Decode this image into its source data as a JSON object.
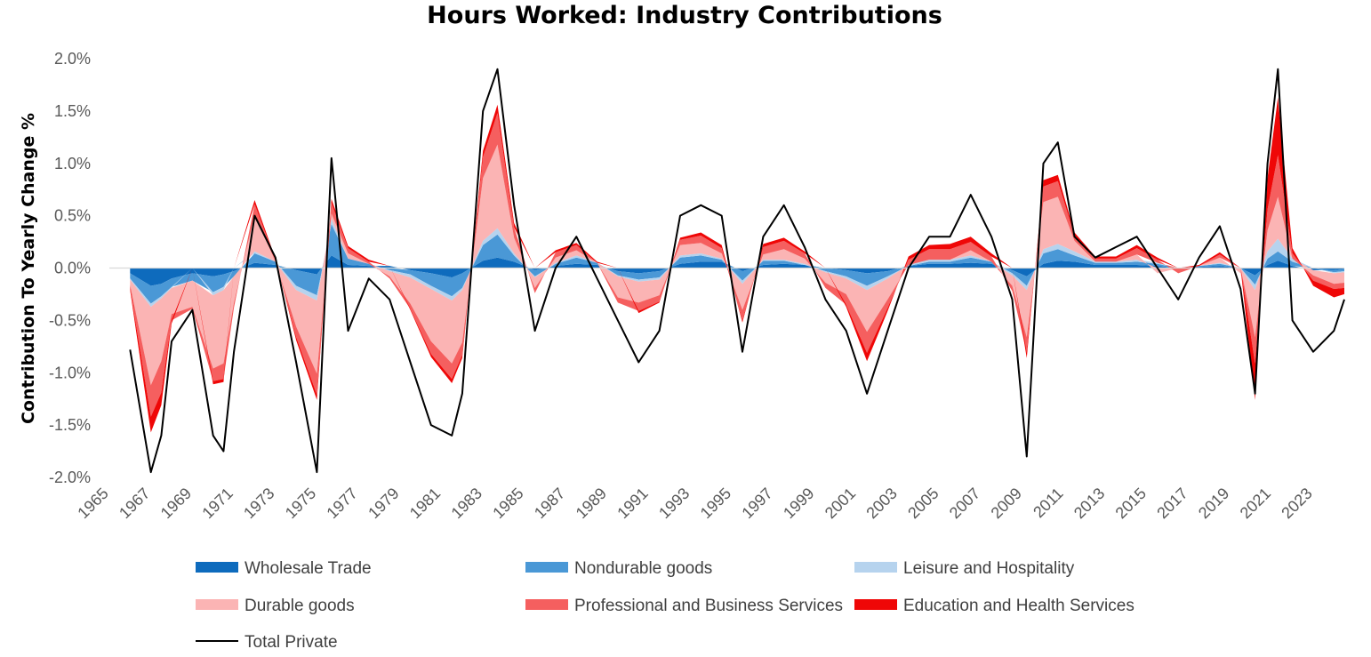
{
  "chart_data": {
    "type": "area",
    "title": "Hours Worked: Industry Contributions",
    "xlabel": "",
    "ylabel": "Contribution To Yearly Change %",
    "xlim": [
      1965,
      2024.5
    ],
    "ylim": [
      -2.0,
      2.0
    ],
    "y_ticks": [
      2.0,
      1.5,
      1.0,
      0.5,
      0.0,
      -0.5,
      -1.0,
      -1.5,
      -2.0
    ],
    "y_tick_labels": [
      "2.0%",
      "1.5%",
      "1.0%",
      "0.5%",
      "0.0%",
      "-0.5%",
      "-1.0%",
      "-1.5%",
      "-2.0%"
    ],
    "x_ticks": [
      1965,
      1967,
      1969,
      1971,
      1973,
      1975,
      1977,
      1979,
      1981,
      1983,
      1985,
      1987,
      1989,
      1991,
      1993,
      1995,
      1997,
      1999,
      2001,
      2003,
      2005,
      2007,
      2009,
      2011,
      2013,
      2015,
      2017,
      2019,
      2021,
      2023
    ],
    "x_tick_labels": [
      "1965",
      "1967",
      "1969",
      "1971",
      "1973",
      "1975",
      "1977",
      "1979",
      "1981",
      "1983",
      "1985",
      "1987",
      "1989",
      "1991",
      "1993",
      "1995",
      "1997",
      "1999",
      "2001",
      "2003",
      "2005",
      "2007",
      "2009",
      "2011",
      "2013",
      "2015",
      "2017",
      "2019",
      "2021",
      "2023"
    ],
    "grid": false,
    "legend_position": "bottom",
    "x": [
      1966.0,
      1967.0,
      1967.5,
      1968.0,
      1969.0,
      1970.0,
      1970.5,
      1971.0,
      1972.0,
      1973.0,
      1974.0,
      1975.0,
      1975.7,
      1976.5,
      1977.5,
      1978.5,
      1979.5,
      1980.5,
      1981.5,
      1982.0,
      1983.0,
      1983.7,
      1984.5,
      1985.5,
      1986.5,
      1987.5,
      1988.5,
      1989.5,
      1990.5,
      1991.5,
      1992.5,
      1993.5,
      1994.5,
      1995.5,
      1996.5,
      1997.5,
      1998.5,
      1999.5,
      2000.5,
      2001.5,
      2002.5,
      2003.5,
      2004.5,
      2005.5,
      2006.5,
      2007.5,
      2008.5,
      2009.2,
      2010.0,
      2010.7,
      2011.5,
      2012.5,
      2013.5,
      2014.5,
      2015.5,
      2016.5,
      2017.5,
      2018.5,
      2019.5,
      2020.2,
      2020.8,
      2021.3,
      2022.0,
      2023.0,
      2024.0,
      2024.5
    ],
    "series": [
      {
        "name": "Wholesale Trade",
        "color": "#0e6bbd",
        "values": [
          -0.05,
          -0.17,
          -0.15,
          -0.1,
          -0.05,
          -0.08,
          -0.06,
          -0.03,
          0.05,
          0.03,
          -0.02,
          -0.06,
          0.12,
          0.03,
          0.02,
          0.02,
          -0.02,
          -0.05,
          -0.09,
          -0.05,
          0.07,
          0.1,
          0.06,
          -0.02,
          0.02,
          0.04,
          0.03,
          -0.03,
          -0.05,
          -0.03,
          0.04,
          0.06,
          0.06,
          -0.03,
          0.03,
          0.04,
          0.03,
          0.0,
          -0.02,
          -0.05,
          -0.03,
          0.02,
          0.04,
          0.04,
          0.05,
          0.04,
          -0.02,
          -0.08,
          0.04,
          0.07,
          0.06,
          0.03,
          0.03,
          0.03,
          0.02,
          0.0,
          0.01,
          0.02,
          0.0,
          -0.07,
          0.03,
          0.07,
          0.02,
          -0.02,
          -0.02,
          -0.01
        ]
      },
      {
        "name": "Nondurable goods",
        "color": "#4a98d6",
        "values": [
          -0.05,
          -0.17,
          -0.12,
          -0.08,
          -0.07,
          -0.15,
          -0.12,
          -0.05,
          0.09,
          0.03,
          -0.15,
          -0.2,
          0.3,
          0.06,
          0.02,
          -0.02,
          -0.04,
          -0.12,
          -0.18,
          -0.14,
          0.15,
          0.22,
          0.06,
          -0.06,
          0.02,
          0.06,
          0.02,
          -0.04,
          -0.06,
          -0.06,
          0.06,
          0.06,
          0.02,
          -0.09,
          0.04,
          0.03,
          0.0,
          -0.03,
          -0.06,
          -0.12,
          -0.05,
          0.0,
          0.02,
          0.02,
          0.05,
          0.02,
          -0.03,
          -0.09,
          0.1,
          0.11,
          0.06,
          0.02,
          0.02,
          0.03,
          0.02,
          0.0,
          0.01,
          0.02,
          0.0,
          -0.09,
          0.06,
          0.09,
          0.04,
          0.0,
          -0.02,
          -0.02
        ]
      },
      {
        "name": "Leisure and Hospitality",
        "color": "#b6d3ee",
        "values": [
          -0.01,
          -0.03,
          -0.02,
          -0.01,
          0.0,
          -0.03,
          -0.03,
          0.0,
          0.02,
          0.0,
          -0.04,
          -0.05,
          0.05,
          0.0,
          0.0,
          -0.01,
          -0.03,
          -0.03,
          -0.04,
          -0.02,
          0.04,
          0.06,
          0.02,
          -0.01,
          0.01,
          0.02,
          0.0,
          -0.01,
          -0.02,
          -0.02,
          0.02,
          0.02,
          0.01,
          -0.03,
          0.01,
          0.01,
          0.01,
          -0.01,
          -0.02,
          -0.04,
          -0.02,
          0.01,
          0.02,
          0.02,
          0.02,
          0.0,
          -0.02,
          -0.04,
          0.04,
          0.05,
          0.04,
          0.01,
          0.01,
          0.02,
          0.01,
          0.0,
          0.0,
          0.01,
          0.0,
          -0.05,
          0.07,
          0.12,
          0.03,
          0.0,
          -0.01,
          -0.01
        ]
      },
      {
        "name": "Durable goods",
        "color": "#fbb4b4",
        "values": [
          -0.05,
          -0.75,
          -0.6,
          -0.25,
          -0.25,
          -0.7,
          -0.7,
          -0.25,
          0.35,
          0.0,
          -0.35,
          -0.7,
          0.05,
          0.05,
          0.0,
          -0.05,
          -0.25,
          -0.5,
          -0.6,
          -0.5,
          0.6,
          0.8,
          0.15,
          -0.1,
          0.05,
          0.05,
          0.0,
          -0.2,
          -0.2,
          -0.15,
          0.1,
          0.1,
          0.05,
          -0.25,
          0.05,
          0.1,
          0.05,
          -0.1,
          -0.15,
          -0.4,
          -0.2,
          0.0,
          0.0,
          0.0,
          0.05,
          0.0,
          -0.1,
          -0.45,
          0.45,
          0.45,
          0.1,
          0.0,
          0.0,
          0.05,
          -0.05,
          0.0,
          0.0,
          0.05,
          -0.05,
          -0.45,
          0.2,
          0.4,
          0.0,
          -0.05,
          -0.1,
          -0.1
        ]
      },
      {
        "name": "Professional and Business Services",
        "color": "#f55f5f",
        "values": [
          -0.03,
          -0.3,
          -0.3,
          -0.06,
          -0.02,
          -0.12,
          -0.15,
          -0.05,
          0.1,
          0.02,
          -0.1,
          -0.2,
          0.1,
          0.05,
          0.02,
          -0.02,
          -0.05,
          -0.12,
          -0.15,
          -0.12,
          0.2,
          0.3,
          0.1,
          -0.05,
          0.05,
          0.05,
          0.0,
          -0.05,
          -0.08,
          -0.06,
          0.05,
          0.07,
          0.05,
          -0.1,
          0.07,
          0.08,
          0.05,
          -0.05,
          -0.1,
          -0.2,
          -0.08,
          0.05,
          0.1,
          0.1,
          0.08,
          0.05,
          -0.05,
          -0.15,
          0.15,
          0.15,
          0.05,
          0.03,
          0.03,
          0.06,
          0.03,
          -0.05,
          0.0,
          0.03,
          0.0,
          -0.25,
          0.2,
          0.4,
          0.05,
          -0.05,
          -0.05,
          -0.05
        ]
      },
      {
        "name": "Education and Health Services",
        "color": "#ef0707",
        "values": [
          -0.02,
          -0.15,
          -0.12,
          -0.03,
          0.0,
          -0.03,
          -0.03,
          0.0,
          0.04,
          0.01,
          -0.03,
          -0.05,
          0.04,
          0.02,
          0.02,
          0.0,
          -0.01,
          -0.03,
          -0.04,
          -0.03,
          0.06,
          0.08,
          0.04,
          0.0,
          0.02,
          0.02,
          0.01,
          0.0,
          -0.02,
          -0.01,
          0.02,
          0.03,
          0.03,
          -0.02,
          0.03,
          0.03,
          0.02,
          0.0,
          -0.02,
          -0.08,
          -0.03,
          0.03,
          0.04,
          0.05,
          0.05,
          0.03,
          0.0,
          -0.05,
          0.06,
          0.06,
          0.03,
          0.02,
          0.02,
          0.03,
          0.02,
          0.0,
          0.01,
          0.02,
          0.0,
          -0.35,
          0.3,
          0.55,
          0.05,
          -0.05,
          -0.08,
          -0.06
        ]
      },
      {
        "name": "Total Private",
        "color": "#000000",
        "values": [
          -0.78,
          -1.95,
          -1.6,
          -0.7,
          -0.4,
          -1.6,
          -1.75,
          -0.8,
          0.5,
          0.1,
          -0.9,
          -1.95,
          1.05,
          -0.6,
          -0.1,
          -0.3,
          -0.9,
          -1.5,
          -1.6,
          -1.2,
          1.5,
          1.9,
          0.6,
          -0.6,
          0.0,
          0.3,
          -0.1,
          -0.5,
          -0.9,
          -0.6,
          0.5,
          0.6,
          0.5,
          -0.8,
          0.3,
          0.6,
          0.2,
          -0.3,
          -0.6,
          -1.2,
          -0.6,
          0.0,
          0.3,
          0.3,
          0.7,
          0.3,
          -0.3,
          -1.8,
          1.0,
          1.2,
          0.3,
          0.1,
          0.2,
          0.3,
          0.0,
          -0.3,
          0.1,
          0.4,
          -0.2,
          -1.2,
          1.0,
          1.9,
          -0.5,
          -0.8,
          -0.6,
          -0.3
        ]
      }
    ]
  }
}
